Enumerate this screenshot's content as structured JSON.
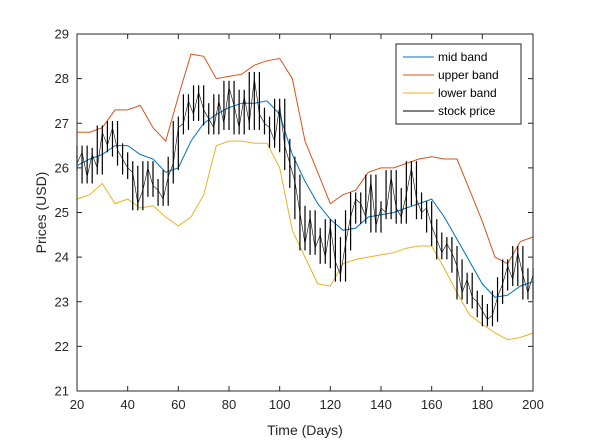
{
  "chart_data": {
    "type": "line",
    "xlabel": "Time (Days)",
    "ylabel": "Prices (USD)",
    "xlim": [
      20,
      200
    ],
    "ylim": [
      21,
      29
    ],
    "xticks": [
      20,
      40,
      60,
      80,
      100,
      120,
      140,
      160,
      180,
      200
    ],
    "yticks": [
      21,
      22,
      23,
      24,
      25,
      26,
      27,
      28,
      29
    ],
    "grid": false,
    "legend_position": "top-right",
    "series": [
      {
        "name": "mid band",
        "color": "#0072BD",
        "x": [
          20,
          25,
          30,
          35,
          40,
          45,
          50,
          55,
          60,
          65,
          70,
          75,
          80,
          85,
          90,
          95,
          100,
          105,
          110,
          115,
          120,
          125,
          130,
          135,
          140,
          145,
          150,
          155,
          160,
          165,
          170,
          175,
          180,
          185,
          190,
          195,
          200
        ],
        "y": [
          26.05,
          26.2,
          26.3,
          26.5,
          26.5,
          26.3,
          26.2,
          25.9,
          26.0,
          26.6,
          27.0,
          27.2,
          27.35,
          27.45,
          27.45,
          27.5,
          27.2,
          26.3,
          25.7,
          25.2,
          24.85,
          24.6,
          24.65,
          24.9,
          24.95,
          25.0,
          25.1,
          25.2,
          25.3,
          24.9,
          24.4,
          23.9,
          23.4,
          23.1,
          23.15,
          23.35,
          23.45
        ]
      },
      {
        "name": "upper band",
        "color": "#D95319",
        "x": [
          20,
          25,
          30,
          35,
          40,
          45,
          50,
          55,
          60,
          65,
          70,
          75,
          80,
          85,
          90,
          95,
          100,
          105,
          110,
          115,
          120,
          125,
          130,
          135,
          140,
          145,
          150,
          155,
          160,
          165,
          170,
          175,
          180,
          185,
          190,
          195,
          200
        ],
        "y": [
          26.8,
          26.8,
          26.9,
          27.3,
          27.3,
          27.4,
          26.9,
          26.6,
          27.6,
          28.55,
          28.5,
          28.0,
          28.05,
          28.1,
          28.3,
          28.4,
          28.45,
          28.0,
          26.6,
          25.9,
          25.2,
          25.4,
          25.5,
          25.9,
          26.0,
          26.0,
          26.1,
          26.2,
          26.25,
          26.2,
          26.2,
          25.5,
          24.8,
          24.0,
          23.85,
          24.35,
          24.45
        ]
      },
      {
        "name": "lower band",
        "color": "#EDB120",
        "x": [
          20,
          25,
          30,
          35,
          40,
          45,
          50,
          55,
          60,
          65,
          70,
          75,
          80,
          85,
          90,
          95,
          100,
          105,
          110,
          115,
          120,
          125,
          130,
          135,
          140,
          145,
          150,
          155,
          160,
          165,
          170,
          175,
          180,
          185,
          190,
          195,
          200
        ],
        "y": [
          25.3,
          25.4,
          25.65,
          25.2,
          25.3,
          25.1,
          25.15,
          24.9,
          24.7,
          24.9,
          25.4,
          26.5,
          26.6,
          26.6,
          26.55,
          26.55,
          26.0,
          24.6,
          24.0,
          23.4,
          23.35,
          23.85,
          23.95,
          24.0,
          24.05,
          24.1,
          24.2,
          24.25,
          24.25,
          23.75,
          23.2,
          22.7,
          22.5,
          22.3,
          22.15,
          22.2,
          22.3
        ]
      },
      {
        "name": "stock price",
        "color": "#000000",
        "x": [
          20,
          22,
          24,
          26,
          28,
          30,
          32,
          34,
          36,
          38,
          40,
          42,
          44,
          46,
          48,
          50,
          52,
          54,
          56,
          58,
          60,
          62,
          64,
          66,
          68,
          70,
          72,
          74,
          76,
          78,
          80,
          82,
          84,
          86,
          88,
          90,
          92,
          94,
          96,
          98,
          100,
          102,
          104,
          106,
          108,
          110,
          112,
          114,
          116,
          118,
          120,
          122,
          124,
          126,
          128,
          130,
          132,
          134,
          136,
          138,
          140,
          142,
          144,
          146,
          148,
          150,
          152,
          154,
          156,
          158,
          160,
          162,
          164,
          166,
          168,
          170,
          172,
          174,
          176,
          178,
          180,
          182,
          184,
          186,
          188,
          190,
          192,
          194,
          196,
          198,
          200
        ],
        "y": [
          26.1,
          26.35,
          25.8,
          26.3,
          26.0,
          26.8,
          26.5,
          26.9,
          26.4,
          26.2,
          26.0,
          25.9,
          25.2,
          25.5,
          26.0,
          25.6,
          25.5,
          25.3,
          25.8,
          26.1,
          26.9,
          27.0,
          27.5,
          27.2,
          27.7,
          27.3,
          27.1,
          26.9,
          27.5,
          27.0,
          27.8,
          27.4,
          26.9,
          27.6,
          27.0,
          28.0,
          27.2,
          27.0,
          26.9,
          26.6,
          27.4,
          26.5,
          26.1,
          25.7,
          25.0,
          24.3,
          24.9,
          24.2,
          24.5,
          24.0,
          24.7,
          23.9,
          23.6,
          24.3,
          24.9,
          25.3,
          25.2,
          24.9,
          25.7,
          24.7,
          25.1,
          25.0,
          25.8,
          25.1,
          24.9,
          25.4,
          26.0,
          25.3,
          25.0,
          25.1,
          24.7,
          24.4,
          24.1,
          24.3,
          24.1,
          23.8,
          23.2,
          23.5,
          23.1,
          23.0,
          22.8,
          22.6,
          22.7,
          23.1,
          23.4,
          23.8,
          23.5,
          24.1,
          23.6,
          23.2,
          23.6
        ]
      }
    ]
  }
}
